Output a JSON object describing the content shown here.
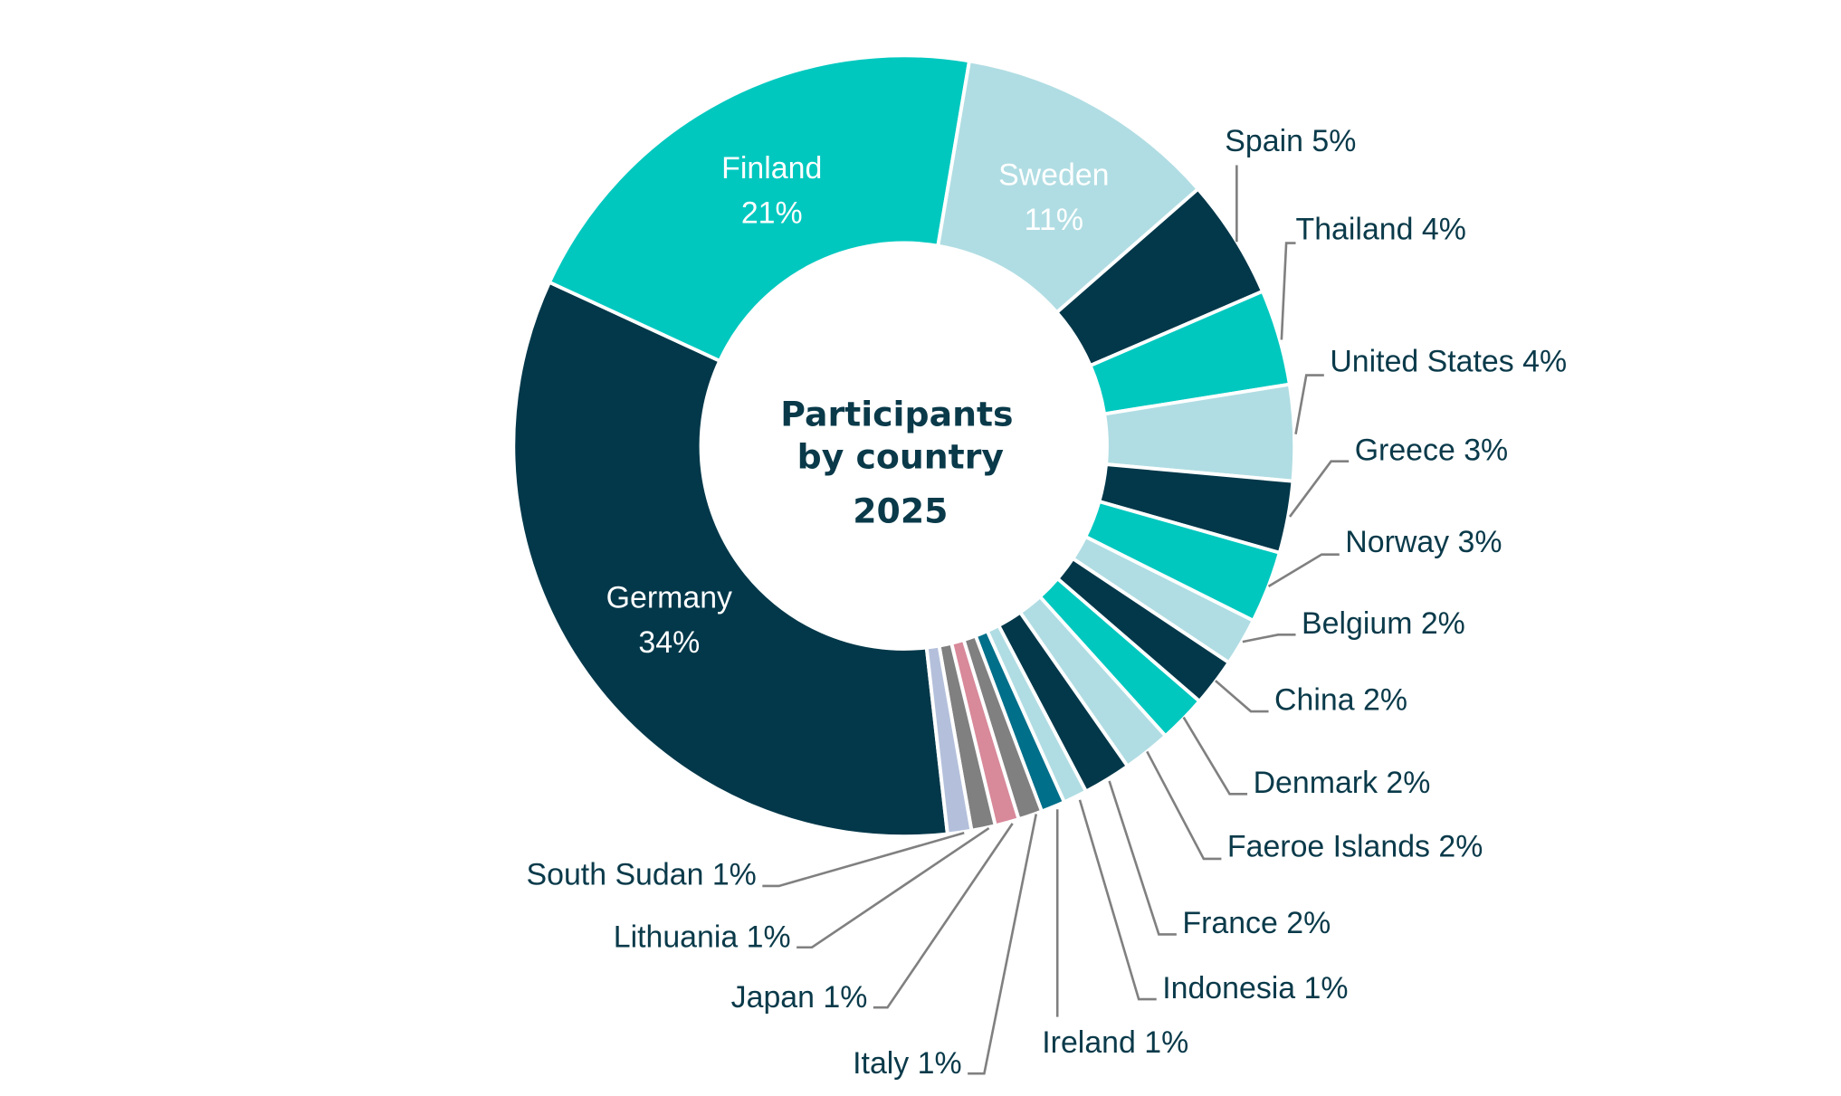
{
  "chart_data": {
    "type": "donut",
    "title": [
      "Participants",
      "by country",
      "2025"
    ],
    "unit": "%",
    "slices": [
      {
        "name": "Germany",
        "value": 34,
        "label": "34%",
        "color": "#02384a"
      },
      {
        "name": "Finland",
        "value": 21,
        "label": "21%",
        "color": "#00c8bf"
      },
      {
        "name": "Sweden",
        "value": 11,
        "label": "11%",
        "color": "#b0dde3"
      },
      {
        "name": "Spain",
        "value": 5,
        "label": "Spain 5%",
        "color": "#02384a"
      },
      {
        "name": "Thailand",
        "value": 4,
        "label": "Thailand 4%",
        "color": "#00c8bf"
      },
      {
        "name": "United States",
        "value": 4,
        "label": "United States 4%",
        "color": "#b0dde3"
      },
      {
        "name": "Greece",
        "value": 3,
        "label": "Greece 3%",
        "color": "#02384a"
      },
      {
        "name": "Norway",
        "value": 3,
        "label": "Norway 3%",
        "color": "#00c8bf"
      },
      {
        "name": "Belgium",
        "value": 2,
        "label": "Belgium 2%",
        "color": "#b0dde3"
      },
      {
        "name": "China",
        "value": 2,
        "label": "China 2%",
        "color": "#02384a"
      },
      {
        "name": "Denmark",
        "value": 2,
        "label": "Denmark 2%",
        "color": "#00c8bf"
      },
      {
        "name": "Faeroe Islands",
        "value": 2,
        "label": "Faeroe Islands 2%",
        "color": "#b0dde3"
      },
      {
        "name": "France",
        "value": 2,
        "label": "France 2%",
        "color": "#02384a"
      },
      {
        "name": "Indonesia",
        "value": 1,
        "label": "Indonesia 1%",
        "color": "#b0dde3"
      },
      {
        "name": "Ireland",
        "value": 1,
        "label": "Ireland 1%",
        "color": "#006f8a"
      },
      {
        "name": "Italy",
        "value": 1,
        "label": "Italy 1%",
        "color": "#808080"
      },
      {
        "name": "Japan",
        "value": 1,
        "label": "Japan 1%",
        "color": "#d8899a"
      },
      {
        "name": "Lithuania",
        "value": 1,
        "label": "Lithuania 1%",
        "color": "#808080"
      },
      {
        "name": "South Sudan",
        "value": 1,
        "label": "South Sudan 1%",
        "color": "#b4c0db"
      }
    ]
  }
}
